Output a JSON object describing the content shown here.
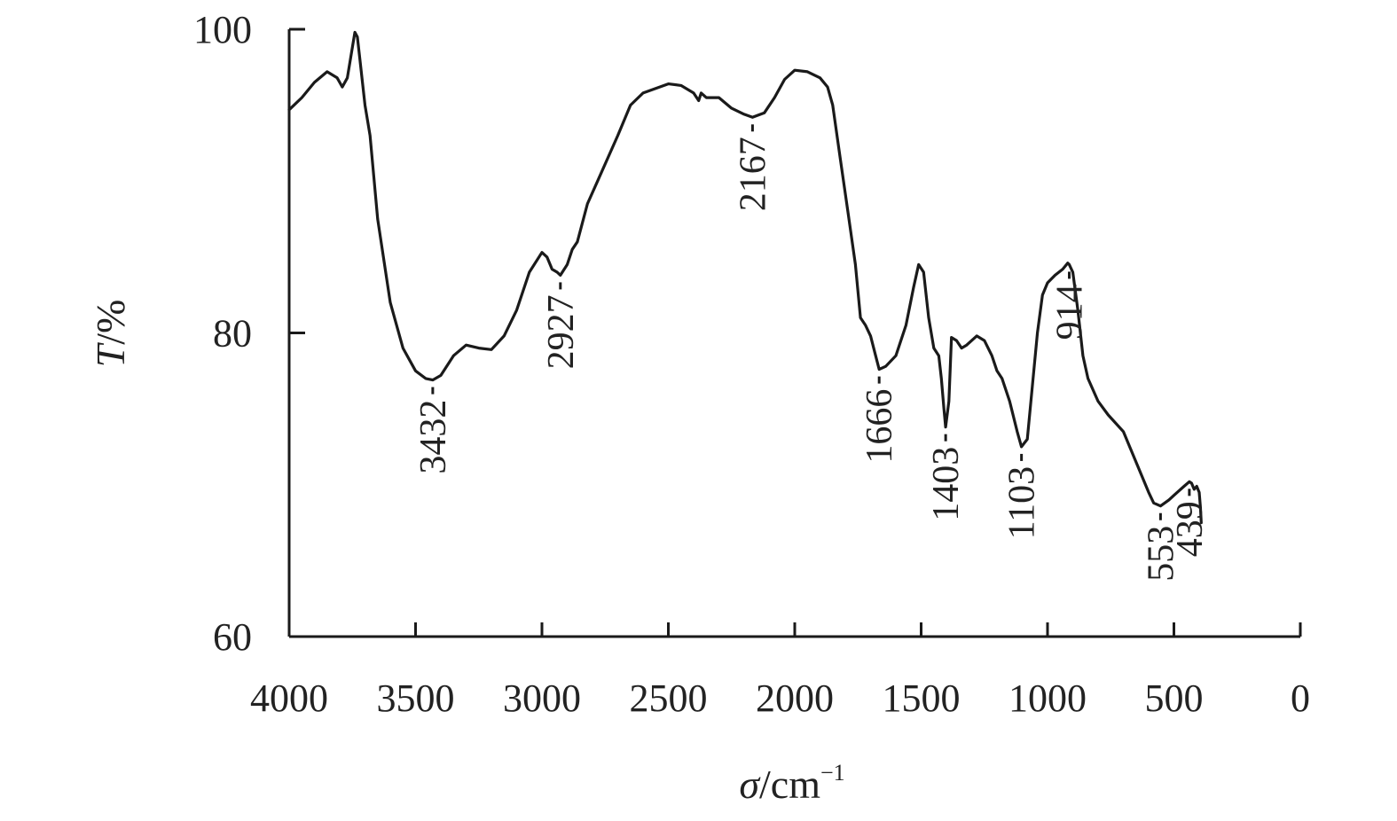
{
  "chart_data": {
    "type": "line",
    "title": "",
    "xlabel_symbol": "σ",
    "xlabel_unit": "/cm",
    "xlabel_exp": "−1",
    "ylabel_symbol": "T",
    "ylabel_unit": "/%",
    "xlim": [
      4000,
      0
    ],
    "ylim": [
      60,
      100
    ],
    "x_ticks": [
      4000,
      3500,
      3000,
      2500,
      2000,
      1500,
      1000,
      500,
      0
    ],
    "x_tick_labels": [
      "4000",
      "3500",
      "3000",
      "2500",
      "2000",
      "1500",
      "1000",
      "500",
      "0"
    ],
    "y_ticks": [
      60,
      80,
      100
    ],
    "y_tick_labels": [
      "60",
      "80",
      "100"
    ],
    "grid": false,
    "legend": "none",
    "line_color": "#1a1a1a",
    "series": [
      {
        "x": [
          4000,
          3950,
          3900,
          3850,
          3810,
          3790,
          3770,
          3740,
          3730,
          3720,
          3700,
          3680,
          3650,
          3600,
          3550,
          3500,
          3460,
          3432,
          3400,
          3350,
          3300,
          3250,
          3200,
          3150,
          3100,
          3050,
          3000,
          2980,
          2960,
          2940,
          2927,
          2900,
          2880,
          2860,
          2820,
          2780,
          2700,
          2650,
          2600,
          2500,
          2450,
          2400,
          2380,
          2370,
          2350,
          2300,
          2250,
          2200,
          2167,
          2120,
          2080,
          2040,
          2000,
          1950,
          1900,
          1870,
          1850,
          1820,
          1790,
          1760,
          1740,
          1720,
          1700,
          1680,
          1666,
          1640,
          1600,
          1560,
          1530,
          1510,
          1490,
          1470,
          1450,
          1430,
          1420,
          1410,
          1403,
          1390,
          1380,
          1360,
          1340,
          1320,
          1300,
          1280,
          1250,
          1220,
          1200,
          1180,
          1150,
          1120,
          1103,
          1080,
          1060,
          1040,
          1020,
          1000,
          970,
          940,
          920,
          914,
          900,
          880,
          860,
          840,
          800,
          760,
          700,
          650,
          600,
          580,
          553,
          520,
          500,
          480,
          460,
          439,
          430,
          420,
          410,
          400,
          395,
          392
        ],
        "y": [
          94.7,
          95.5,
          96.5,
          97.2,
          96.8,
          96.2,
          96.8,
          99.8,
          99.5,
          98.0,
          95.0,
          93.0,
          87.5,
          82.0,
          79.0,
          77.5,
          77.0,
          76.9,
          77.2,
          78.5,
          79.2,
          79.0,
          78.9,
          79.8,
          81.5,
          84.0,
          85.3,
          85.0,
          84.2,
          84.0,
          83.8,
          84.5,
          85.5,
          86.0,
          88.5,
          90.0,
          93.0,
          95.0,
          95.8,
          96.4,
          96.3,
          95.8,
          95.3,
          95.8,
          95.5,
          95.5,
          94.8,
          94.4,
          94.2,
          94.5,
          95.5,
          96.7,
          97.3,
          97.2,
          96.8,
          96.2,
          95.0,
          91.5,
          88.0,
          84.5,
          81.0,
          80.5,
          79.8,
          78.5,
          77.6,
          77.8,
          78.5,
          80.5,
          83.0,
          84.5,
          84.0,
          81.0,
          79.0,
          78.5,
          77.0,
          75.0,
          73.8,
          75.5,
          79.7,
          79.5,
          79.0,
          79.2,
          79.5,
          79.8,
          79.5,
          78.5,
          77.5,
          77.0,
          75.5,
          73.5,
          72.5,
          73.0,
          76.5,
          80.0,
          82.5,
          83.3,
          83.8,
          84.2,
          84.6,
          84.5,
          84.0,
          81.5,
          78.5,
          77.0,
          75.5,
          74.6,
          73.5,
          71.5,
          69.5,
          68.8,
          68.6,
          69.0,
          69.3,
          69.6,
          69.9,
          70.2,
          70.1,
          69.7,
          69.9,
          69.5,
          68.5,
          67.5
        ]
      }
    ],
    "peaks": [
      {
        "wn": 3432,
        "label": "3432"
      },
      {
        "wn": 2927,
        "label": "2927"
      },
      {
        "wn": 2167,
        "label": "2167"
      },
      {
        "wn": 1666,
        "label": "1666"
      },
      {
        "wn": 1403,
        "label": "1403"
      },
      {
        "wn": 1103,
        "label": "1103"
      },
      {
        "wn": 914,
        "label": "914"
      },
      {
        "wn": 553,
        "label": "553"
      },
      {
        "wn": 439,
        "label": "439"
      }
    ]
  }
}
